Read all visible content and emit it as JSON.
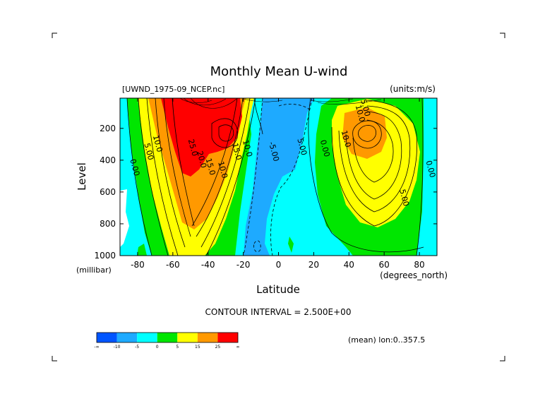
{
  "chart_data": {
    "type": "contour",
    "title": "Monthly Mean U-wind",
    "source_label": "[UWND_1975-09_NCEP.nc]",
    "units_label": "(units:m/s)",
    "xlabel": "Latitude",
    "xunit_label": "(degrees_north)",
    "ylabel": "Level",
    "yunit_label": "(millibar)",
    "xlim": [
      -90,
      90
    ],
    "ylim": [
      1000,
      10
    ],
    "y_inverted": true,
    "xticks": [
      -80,
      -60,
      -40,
      -20,
      0,
      20,
      40,
      60,
      80
    ],
    "xtick_labels": [
      "-80",
      "-60",
      "-40",
      "-20",
      "0",
      "20",
      "40",
      "60",
      "80"
    ],
    "yticks": [
      200,
      400,
      600,
      800,
      1000
    ],
    "ytick_labels": [
      "200",
      "400",
      "600",
      "800",
      "1000"
    ],
    "contour_interval_text": "CONTOUR INTERVAL = 2.500E+00",
    "mean_text": "(mean) lon:0..357.5",
    "contour_labels": [
      {
        "text": "25.0",
        "x": -50,
        "y": 325
      },
      {
        "text": "20.0",
        "x": -45,
        "y": 400
      },
      {
        "text": "15.0",
        "x": -40,
        "y": 445
      },
      {
        "text": "10.0",
        "x": -33,
        "y": 465
      },
      {
        "text": "15.0",
        "x": -25,
        "y": 350
      },
      {
        "text": "10.0",
        "x": -19,
        "y": 330
      },
      {
        "text": "10.0",
        "x": -70,
        "y": 300
      },
      {
        "text": "5.00",
        "x": -75,
        "y": 350
      },
      {
        "text": "0.00",
        "x": -83,
        "y": 450
      },
      {
        "text": "-5.00",
        "x": -4,
        "y": 350
      },
      {
        "text": "5.00",
        "x": 12,
        "y": 320
      },
      {
        "text": "0.00",
        "x": 25,
        "y": 330
      },
      {
        "text": "10.0",
        "x": 37,
        "y": 270
      },
      {
        "text": "5.00",
        "x": 48,
        "y": 75
      },
      {
        "text": "10.0",
        "x": 45,
        "y": 110
      },
      {
        "text": "5.00",
        "x": 70,
        "y": 640
      },
      {
        "text": "0.00",
        "x": 85,
        "y": 460
      }
    ],
    "colorbar": {
      "colors": [
        "#0055ff",
        "#1eaaff",
        "#00ffff",
        "#00e600",
        "#ffff00",
        "#ff9900",
        "#ff0000"
      ],
      "tick_labels": [
        "-∞",
        "-10",
        "-5",
        "0",
        "5",
        "15",
        "25",
        "∞"
      ]
    },
    "corner_marks": true
  }
}
